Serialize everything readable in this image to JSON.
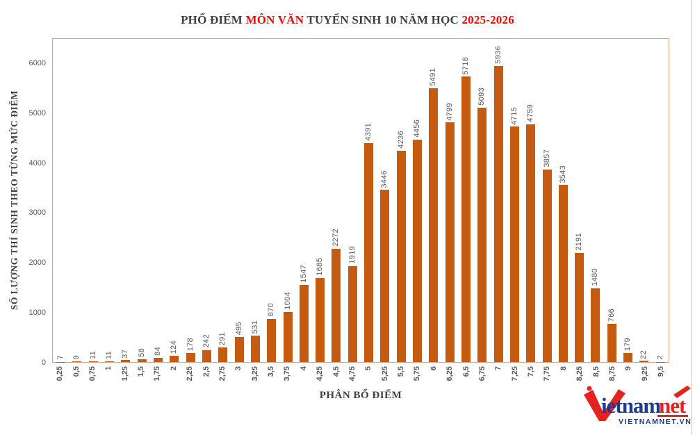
{
  "colors": {
    "bar": "#C55A11",
    "title_dark": "#3F3F3F",
    "title_red": "#FE0000",
    "axis_border": "#D9A384",
    "label_gray": "#595959",
    "logo_navy": "#21398C",
    "logo_red": "#E42320"
  },
  "title": {
    "part1": "PHỔ ĐIỂM ",
    "part2": "MÔN VĂN",
    "part3": " TUYỂN SINH 10 NĂM HỌC ",
    "part4": "2025-2026"
  },
  "chart_data": {
    "type": "bar",
    "title": "PHỔ ĐIỂM MÔN VĂN TUYỂN SINH 10 NĂM HỌC 2025-2026",
    "xlabel": "PHÂN BỔ ĐIỂM",
    "ylabel": "SỐ LƯỢNG THÍ SINH THEO TỪNG MỨC ĐIỂM",
    "categories": [
      "0,25",
      "0,5",
      "0,75",
      "1",
      "1,25",
      "1,5",
      "1,75",
      "2",
      "2,25",
      "2,5",
      "2,75",
      "3",
      "3,25",
      "3,5",
      "3,75",
      "4",
      "4,25",
      "4,5",
      "4,75",
      "5",
      "5,25",
      "5,5",
      "5,75",
      "6",
      "6,25",
      "6,5",
      "6,75",
      "7",
      "7,25",
      "7,5",
      "7,75",
      "8",
      "8,25",
      "8,5",
      "8,75",
      "9",
      "9,25",
      "9,5"
    ],
    "values": [
      7,
      9,
      11,
      11,
      37,
      58,
      84,
      124,
      178,
      242,
      291,
      495,
      531,
      870,
      1004,
      1547,
      1685,
      2272,
      1919,
      4391,
      3446,
      4236,
      4456,
      5491,
      4799,
      5718,
      5093,
      5936,
      4715,
      4759,
      3857,
      3543,
      2191,
      1480,
      766,
      179,
      22,
      2
    ],
    "ylim": [
      0,
      6500
    ],
    "yticks": [
      0,
      1000,
      2000,
      3000,
      4000,
      5000,
      6000
    ],
    "grid": false,
    "legend": false,
    "bar_color": "#C55A11",
    "value_labels": true
  },
  "logo": {
    "word1": "ietnam",
    "word2": "net",
    "subtitle": "VIETNAMNET.VN"
  }
}
